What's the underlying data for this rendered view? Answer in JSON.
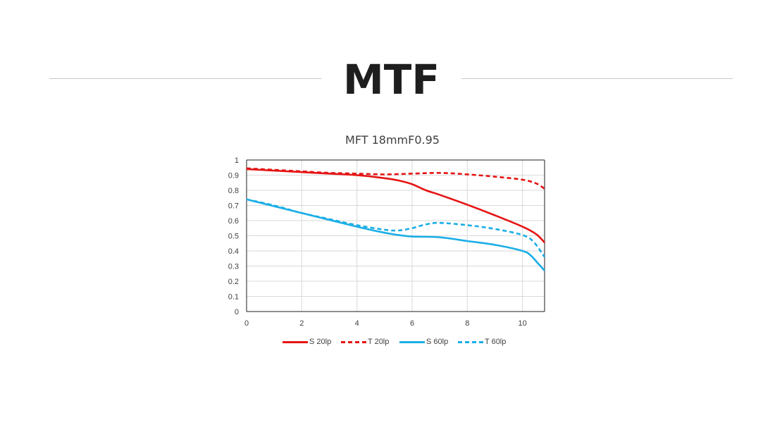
{
  "header": {
    "title": "MTF"
  },
  "chart_data": {
    "type": "line",
    "title": "MFT 18mmF0.95",
    "xlabel": "",
    "ylabel": "",
    "xlim": [
      0,
      10.8
    ],
    "ylim": [
      0,
      1
    ],
    "x_ticks": [
      "0",
      "2",
      "4",
      "6",
      "8",
      "10"
    ],
    "y_ticks": [
      "0",
      "0.1",
      "0.2",
      "0.3",
      "0.4",
      "0.5",
      "0.6",
      "0.7",
      "0.8",
      "0.9",
      "1"
    ],
    "grid": true,
    "legend_position": "bottom",
    "series": [
      {
        "name": "S 20lp",
        "color": "#e61414",
        "dash": "solid",
        "x": [
          0,
          1,
          2,
          3,
          4,
          5,
          5.5,
          6,
          6.5,
          7,
          8,
          9,
          10,
          10.5,
          10.8
        ],
        "y": [
          0.94,
          0.93,
          0.92,
          0.91,
          0.9,
          0.88,
          0.865,
          0.84,
          0.8,
          0.77,
          0.705,
          0.635,
          0.56,
          0.51,
          0.455
        ]
      },
      {
        "name": "T 20lp",
        "color": "#e61414",
        "dash": "dashed",
        "x": [
          0,
          1,
          2,
          3,
          4,
          5,
          6,
          7,
          8,
          9,
          10,
          10.5,
          10.8
        ],
        "y": [
          0.945,
          0.935,
          0.925,
          0.915,
          0.91,
          0.905,
          0.91,
          0.915,
          0.905,
          0.89,
          0.87,
          0.845,
          0.81
        ]
      },
      {
        "name": "S 60lp",
        "color": "#1aaee6",
        "dash": "solid",
        "x": [
          0,
          1,
          2,
          3,
          4,
          5,
          5.5,
          6,
          7,
          8,
          9,
          10,
          10.3,
          10.6,
          10.8
        ],
        "y": [
          0.74,
          0.695,
          0.65,
          0.605,
          0.56,
          0.52,
          0.505,
          0.495,
          0.49,
          0.465,
          0.44,
          0.4,
          0.37,
          0.31,
          0.27
        ]
      },
      {
        "name": "T 60lp",
        "color": "#1aaee6",
        "dash": "dashed",
        "x": [
          0,
          1,
          2,
          3,
          4,
          5,
          5.5,
          6,
          6.5,
          7,
          8,
          9,
          10,
          10.4,
          10.8
        ],
        "y": [
          0.74,
          0.7,
          0.65,
          0.61,
          0.57,
          0.54,
          0.535,
          0.55,
          0.575,
          0.585,
          0.57,
          0.545,
          0.505,
          0.46,
          0.36
        ]
      }
    ]
  }
}
